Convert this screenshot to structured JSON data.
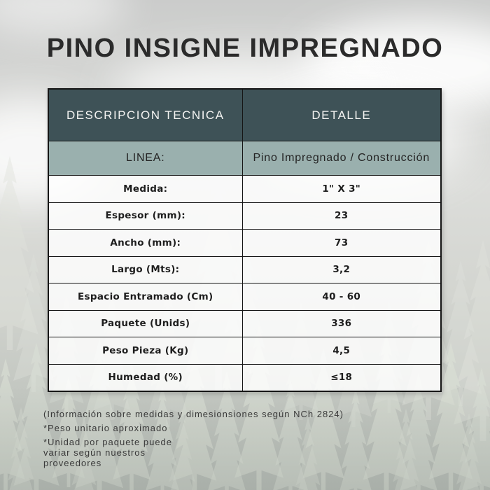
{
  "page": {
    "title": "PINO INSIGNE IMPREGNADO"
  },
  "table": {
    "header": {
      "col1": "DESCRIPCION TECNICA",
      "col2": "DETALLE"
    },
    "linea_row": {
      "label": "LINEA:",
      "value": "Pino Impregnado / Construcción"
    },
    "rows": [
      {
        "label": "Medida:",
        "value": "1\" X 3\""
      },
      {
        "label": "Espesor (mm):",
        "value": "23"
      },
      {
        "label": "Ancho (mm):",
        "value": "73"
      },
      {
        "label": "Largo (Mts):",
        "value": "3,2"
      },
      {
        "label": "Espacio Entramado (Cm)",
        "value": "40 - 60"
      },
      {
        "label": "Paquete (Unids)",
        "value": "336"
      },
      {
        "label": "Peso Pieza (Kg)",
        "value": "4,5"
      },
      {
        "label": "Humedad (%)",
        "value": "≤18"
      }
    ]
  },
  "footnotes": {
    "note_norma": "(Información sobre medidas y dimesionsiones según NCh 2824)",
    "note_peso": "*Peso unitario aproximado",
    "note_unidad": "*Unidad por paquete puede\nvariar según nuestros\nproveedores"
  },
  "colors": {
    "header_bg": "#3e5257",
    "linea_bg": "#9ab0ae",
    "title_text": "#2b2b2b",
    "border": "#151515"
  }
}
